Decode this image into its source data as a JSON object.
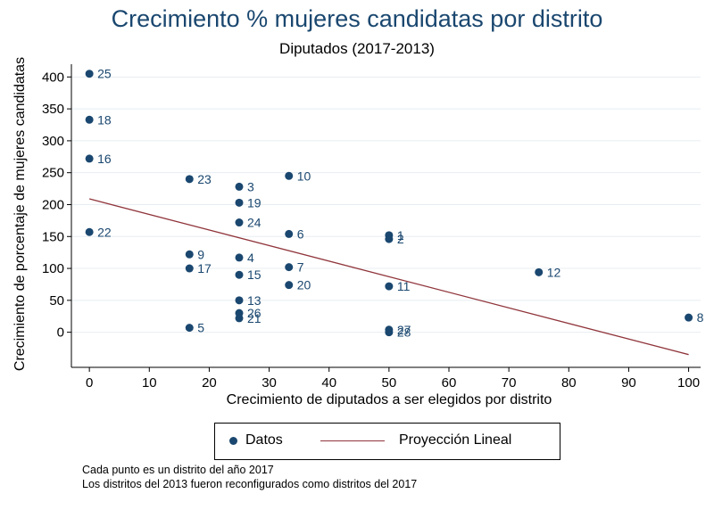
{
  "chart_data": {
    "type": "scatter",
    "title": "Crecimiento % mujeres candidatas por distrito",
    "subtitle": "Diputados (2017-2013)",
    "xlabel": "Crecimiento de diputados a ser elegidos por distrito",
    "ylabel": "Crecimiento de porcentaje de mujeres candidatas",
    "xlim": [
      -3,
      102
    ],
    "ylim": [
      -55,
      420
    ],
    "xticks": [
      0,
      10,
      20,
      30,
      40,
      50,
      60,
      70,
      80,
      90,
      100
    ],
    "yticks": [
      0,
      50,
      100,
      150,
      200,
      250,
      300,
      350,
      400
    ],
    "grid": true,
    "legend_position": "bottom",
    "series": [
      {
        "name": "Datos",
        "color": "#1a476f",
        "points": [
          {
            "x": 0,
            "y": 405,
            "label": "25"
          },
          {
            "x": 0,
            "y": 333,
            "label": "18"
          },
          {
            "x": 0,
            "y": 272,
            "label": "16"
          },
          {
            "x": 0,
            "y": 157,
            "label": "22"
          },
          {
            "x": 16.7,
            "y": 240,
            "label": "23"
          },
          {
            "x": 16.7,
            "y": 122,
            "label": "9"
          },
          {
            "x": 16.7,
            "y": 100,
            "label": "17"
          },
          {
            "x": 16.7,
            "y": 7,
            "label": "5"
          },
          {
            "x": 25,
            "y": 228,
            "label": "3"
          },
          {
            "x": 25,
            "y": 203,
            "label": "19"
          },
          {
            "x": 25,
            "y": 172,
            "label": "24"
          },
          {
            "x": 25,
            "y": 117,
            "label": "4"
          },
          {
            "x": 25,
            "y": 90,
            "label": "15"
          },
          {
            "x": 25,
            "y": 50,
            "label": "13"
          },
          {
            "x": 25,
            "y": 30,
            "label": "26"
          },
          {
            "x": 25,
            "y": 22,
            "label": "21"
          },
          {
            "x": 33.3,
            "y": 245,
            "label": "10"
          },
          {
            "x": 33.3,
            "y": 154,
            "label": "6"
          },
          {
            "x": 33.3,
            "y": 102,
            "label": "7"
          },
          {
            "x": 33.3,
            "y": 74,
            "label": "20"
          },
          {
            "x": 50,
            "y": 152,
            "label": "1"
          },
          {
            "x": 50,
            "y": 146,
            "label": "2"
          },
          {
            "x": 50,
            "y": 72,
            "label": "11"
          },
          {
            "x": 50,
            "y": 4,
            "label": "27"
          },
          {
            "x": 50,
            "y": 0,
            "label": "28"
          },
          {
            "x": 75,
            "y": 94,
            "label": "12"
          },
          {
            "x": 100,
            "y": 23,
            "label": "8"
          }
        ]
      },
      {
        "name": "Proyección Lineal",
        "type": "line",
        "color": "#90353b",
        "x": [
          0,
          100
        ],
        "y": [
          209,
          -35
        ]
      }
    ],
    "notes": [
      "Cada punto es un distrito del año 2017",
      "Los distritos del 2013 fueron reconfigurados como distritos del 2017"
    ]
  }
}
